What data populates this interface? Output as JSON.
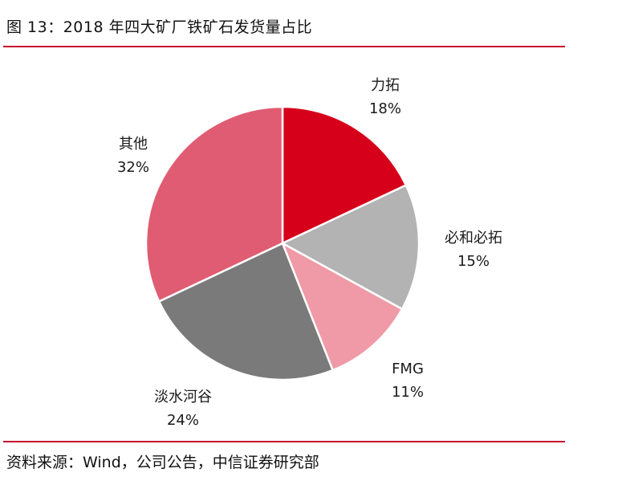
{
  "header": {
    "title": "图 13：2018 年四大矿厂铁矿石发货量占比"
  },
  "footer": {
    "source": "资料来源：Wind，公司公告，中信证券研究部"
  },
  "colors": {
    "accent_rule": "#c8102e"
  },
  "chart_data": {
    "type": "pie",
    "title": "图 13：2018 年四大矿厂铁矿石发货量占比",
    "start_angle_deg": 0,
    "direction": "clockwise",
    "slices": [
      {
        "label": "力拓",
        "value": 18,
        "display": "18%",
        "color": "#d7001b"
      },
      {
        "label": "必和必拓",
        "value": 15,
        "display": "15%",
        "color": "#b3b3b3"
      },
      {
        "label": "FMG",
        "value": 11,
        "display": "11%",
        "color": "#ef9aa6"
      },
      {
        "label": "淡水河谷",
        "value": 24,
        "display": "24%",
        "color": "#7a7a7a"
      },
      {
        "label": "其他",
        "value": 32,
        "display": "32%",
        "color": "#e05c72"
      }
    ]
  }
}
